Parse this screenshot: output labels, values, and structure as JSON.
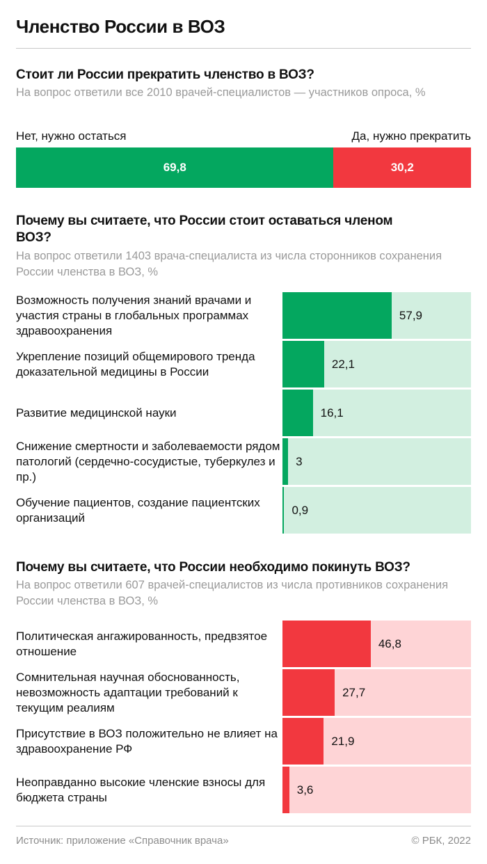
{
  "title": "Членство России в ВОЗ",
  "colors": {
    "green": "#04a75f",
    "green_light": "#d2efe0",
    "red": "#f2383f",
    "red_light": "#fed4d6"
  },
  "chart_data": [
    {
      "type": "bar",
      "orientation": "stacked-100",
      "title": "Стоит ли России прекратить членство в ВОЗ?",
      "subtitle": "На вопрос ответили все 2010 врачей-специалистов — участников опроса, %",
      "categories": [
        "Нет, нужно остаться",
        "Да, нужно прекратить"
      ],
      "values": [
        69.8,
        30.2
      ],
      "value_labels": [
        "69,8",
        "30,2"
      ]
    },
    {
      "type": "bar",
      "orientation": "horizontal",
      "title": "Почему вы считаете, что России стоит оставаться членом ВОЗ?",
      "subtitle": "На вопрос ответили 1403 врача-специалиста из числа сторонников сохранения России членства в ВОЗ, %",
      "categories": [
        "Возможность получения знаний врачами и участия страны в глобальных программах здравоохранения",
        "Укрепление позиций общемирового тренда доказательной медицины в России",
        "Развитие медицинской науки",
        "Снижение смертности и заболеваемости рядом патологий (сердечно-сосудистые, туберкулез и пр.)",
        "Обучение пациентов, создание пациентских организаций"
      ],
      "values": [
        57.9,
        22.1,
        16.1,
        3,
        0.9
      ],
      "value_labels": [
        "57,9",
        "22,1",
        "16,1",
        "3",
        "0,9"
      ],
      "xlim": [
        0,
        100
      ]
    },
    {
      "type": "bar",
      "orientation": "horizontal",
      "title": "Почему вы считаете, что России необходимо покинуть ВОЗ?",
      "subtitle": "На вопрос ответили 607 врачей-специалистов из числа противников сохранения России членства в ВОЗ, %",
      "categories": [
        "Политическая ангажированность, предвзятое отношение",
        "Сомнительная научная обоснованность, невозможность адаптации требований к текущим реалиям",
        "Присутствие в ВОЗ положительно не влияет на здравоохранение РФ",
        "Неоправданно высокие членские взносы для бюджета страны"
      ],
      "values": [
        46.8,
        27.7,
        21.9,
        3.6
      ],
      "value_labels": [
        "46,8",
        "27,7",
        "21,9",
        "3,6"
      ],
      "xlim": [
        0,
        100
      ]
    }
  ],
  "footer": {
    "source": "Источник: приложение «Справочник врача»",
    "copyright": "© РБК, 2022"
  }
}
